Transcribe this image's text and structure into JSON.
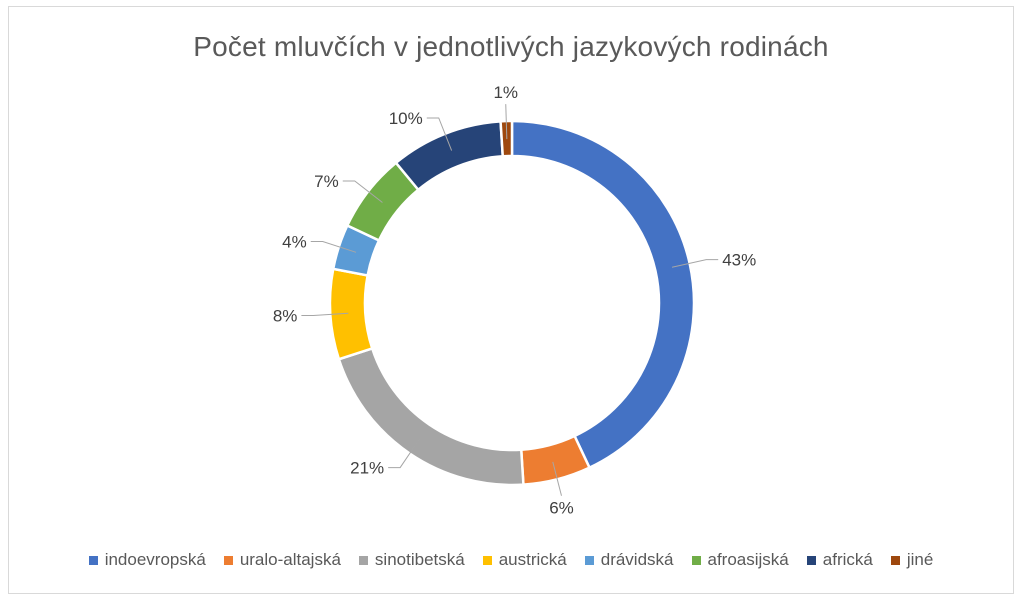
{
  "chart_data": {
    "type": "pie",
    "style": "doughnut",
    "title": "Počet mluvčích v jednotlivých jazykových rodinách",
    "legend_position": "bottom",
    "categories": [
      "indoevropská",
      "uralo-altajská",
      "sinotibetská",
      "austrická",
      "drávidská",
      "afroasijská",
      "africká",
      "jiné"
    ],
    "values": [
      43,
      6,
      21,
      8,
      4,
      7,
      10,
      1
    ],
    "data_labels": [
      "43%",
      "6%",
      "21%",
      "8%",
      "4%",
      "7%",
      "10%",
      "1%"
    ],
    "colors": [
      "#4472C4",
      "#ED7D31",
      "#A5A5A5",
      "#FFC000",
      "#5B9BD5",
      "#70AD47",
      "#264478",
      "#9E480E"
    ]
  }
}
